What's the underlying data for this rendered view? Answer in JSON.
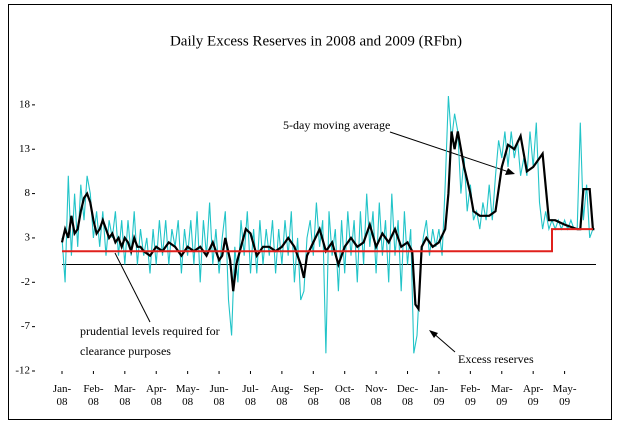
{
  "chart_data": {
    "type": "line",
    "title": "Daily Excess Reserves in 2008 and 2009 (RFbn)",
    "xlim": [
      0,
      17
    ],
    "xticks": [
      {
        "value": 0,
        "label": "Jan-08"
      },
      {
        "value": 1,
        "label": "Feb-08"
      },
      {
        "value": 2,
        "label": "Mar-08"
      },
      {
        "value": 3,
        "label": "Apr-08"
      },
      {
        "value": 4,
        "label": "May-08"
      },
      {
        "value": 5,
        "label": "Jun-08"
      },
      {
        "value": 6,
        "label": "Jul-08"
      },
      {
        "value": 7,
        "label": "Aug-08"
      },
      {
        "value": 8,
        "label": "Sep-08"
      },
      {
        "value": 9,
        "label": "Oct-08"
      },
      {
        "value": 10,
        "label": "Nov-08"
      },
      {
        "value": 11,
        "label": "Dec-08"
      },
      {
        "value": 12,
        "label": "Jan-09"
      },
      {
        "value": 13,
        "label": "Feb-09"
      },
      {
        "value": 14,
        "label": "Mar-09"
      },
      {
        "value": 15,
        "label": "Apr-09"
      },
      {
        "value": 16,
        "label": "May-09"
      }
    ],
    "ylim": [
      -12,
      19
    ],
    "yticks": [
      -12,
      -7,
      -2,
      3,
      8,
      13,
      18
    ],
    "zero_line": true,
    "series": [
      {
        "name": "Excess reserves",
        "color": "#22c4c8",
        "x": [
          0,
          0.1,
          0.2,
          0.3,
          0.4,
          0.5,
          0.6,
          0.7,
          0.8,
          0.9,
          1,
          1.1,
          1.2,
          1.3,
          1.4,
          1.5,
          1.6,
          1.7,
          1.8,
          1.9,
          2,
          2.1,
          2.2,
          2.3,
          2.4,
          2.5,
          2.6,
          2.7,
          2.8,
          2.9,
          3,
          3.1,
          3.2,
          3.3,
          3.4,
          3.5,
          3.6,
          3.7,
          3.8,
          3.9,
          4,
          4.1,
          4.2,
          4.3,
          4.4,
          4.5,
          4.6,
          4.7,
          4.8,
          4.9,
          5,
          5.1,
          5.2,
          5.3,
          5.4,
          5.5,
          5.6,
          5.7,
          5.8,
          5.9,
          6,
          6.1,
          6.2,
          6.3,
          6.4,
          6.5,
          6.6,
          6.7,
          6.8,
          6.9,
          7,
          7.1,
          7.2,
          7.3,
          7.4,
          7.5,
          7.6,
          7.7,
          7.8,
          7.9,
          8,
          8.1,
          8.2,
          8.3,
          8.4,
          8.5,
          8.6,
          8.7,
          8.8,
          8.9,
          9,
          9.1,
          9.2,
          9.3,
          9.4,
          9.5,
          9.6,
          9.7,
          9.8,
          9.9,
          10,
          10.1,
          10.2,
          10.3,
          10.4,
          10.5,
          10.6,
          10.7,
          10.8,
          10.9,
          11,
          11.1,
          11.2,
          11.3,
          11.4,
          11.5,
          11.6,
          11.7,
          11.8,
          11.9,
          12,
          12.1,
          12.2,
          12.3,
          12.4,
          12.5,
          12.6,
          12.7,
          12.8,
          12.9,
          13,
          13.1,
          13.2,
          13.3,
          13.4,
          13.5,
          13.6,
          13.7,
          13.8,
          13.9,
          14,
          14.1,
          14.2,
          14.3,
          14.4,
          14.5,
          14.6,
          14.7,
          14.8,
          14.9,
          15,
          15.1,
          15.2,
          15.3,
          15.4,
          15.5,
          15.6,
          15.7,
          15.8,
          15.9,
          16,
          16.1,
          16.2,
          16.3,
          16.4,
          16.5,
          16.6,
          16.7,
          16.8,
          16.9
        ],
        "values": [
          3,
          -2,
          10,
          1,
          8,
          2,
          9,
          5,
          10,
          8,
          3,
          6,
          2,
          6,
          1,
          5,
          3,
          6,
          1,
          5,
          0,
          5,
          1,
          6,
          0,
          4,
          1,
          3,
          -1,
          4,
          0,
          5,
          1,
          5,
          0,
          4,
          2,
          5,
          -1,
          4,
          1,
          5,
          0,
          6,
          -2,
          5,
          1,
          7,
          0,
          4,
          -1,
          3,
          6,
          -4,
          -8,
          2,
          -2,
          5,
          1,
          6,
          -1,
          4,
          -1,
          5,
          0,
          4,
          1,
          5,
          -1,
          4,
          0,
          5,
          1,
          6,
          -2,
          3,
          -4,
          -3,
          3,
          5,
          1,
          7,
          2,
          5,
          -10,
          6,
          1,
          4,
          -3,
          5,
          -1,
          6,
          1,
          5,
          -2,
          6,
          0,
          8,
          2,
          6,
          -1,
          7,
          1,
          5,
          -2,
          8,
          1,
          5,
          -3,
          6,
          0,
          4,
          -10,
          -8,
          -1,
          3,
          5,
          1,
          4,
          2,
          4,
          1,
          9,
          19,
          14,
          17,
          15,
          8,
          12,
          6,
          9,
          5,
          6,
          4,
          7,
          5,
          9,
          5,
          10,
          14,
          12,
          15,
          11,
          15,
          12,
          14,
          10,
          12,
          10,
          15,
          11,
          16,
          7,
          4,
          6,
          4,
          5,
          4,
          5,
          4,
          5,
          4,
          5,
          4,
          4,
          16,
          5,
          9,
          3,
          4
        ]
      },
      {
        "name": "5-day moving average",
        "color": "#000000",
        "x": [
          0,
          0.1,
          0.2,
          0.3,
          0.4,
          0.5,
          0.6,
          0.7,
          0.8,
          0.9,
          1,
          1.1,
          1.2,
          1.3,
          1.4,
          1.5,
          1.6,
          1.7,
          1.8,
          1.9,
          2,
          2.1,
          2.2,
          2.3,
          2.4,
          2.5,
          2.6,
          2.8,
          3,
          3.2,
          3.4,
          3.6,
          3.8,
          4,
          4.2,
          4.4,
          4.6,
          4.8,
          5,
          5.1,
          5.2,
          5.35,
          5.45,
          5.55,
          5.7,
          5.85,
          6,
          6.2,
          6.4,
          6.6,
          6.8,
          7,
          7.2,
          7.4,
          7.6,
          7.7,
          7.8,
          8,
          8.2,
          8.4,
          8.6,
          8.8,
          9,
          9.2,
          9.4,
          9.6,
          9.8,
          10,
          10.2,
          10.4,
          10.6,
          10.8,
          11,
          11.15,
          11.25,
          11.35,
          11.45,
          11.6,
          11.8,
          12,
          12.2,
          12.3,
          12.4,
          12.5,
          12.6,
          12.8,
          13,
          13.1,
          13.3,
          13.6,
          13.8,
          14,
          14.2,
          14.4,
          14.6,
          14.8,
          15,
          15.2,
          15.3,
          15.5,
          15.7,
          16,
          16.4,
          16.5,
          16.6,
          16.8,
          16.9,
          16.95
        ],
        "values": [
          2.5,
          4,
          3,
          5.5,
          3.5,
          4,
          6,
          7.5,
          8,
          7,
          5,
          3.5,
          4,
          5,
          4,
          3,
          3.5,
          2.5,
          3,
          2,
          3,
          2.5,
          1.5,
          3,
          2,
          2,
          1.5,
          1,
          2,
          1.5,
          2.5,
          2,
          1,
          2,
          1.5,
          2,
          1,
          2.5,
          0.5,
          1,
          3,
          0.5,
          -3,
          0,
          2,
          4,
          3.5,
          1,
          2,
          2,
          1.5,
          2,
          3,
          2,
          0,
          -1.5,
          1,
          2.5,
          4,
          1.5,
          2.5,
          0,
          2,
          3,
          2,
          2.5,
          4.5,
          2,
          3.5,
          2.5,
          4,
          2,
          2.5,
          1.5,
          -4.5,
          -5,
          2,
          3,
          2,
          2.5,
          4,
          8,
          15,
          13,
          15,
          11,
          8,
          6,
          5.5,
          5.5,
          6,
          11,
          13.5,
          13,
          14.5,
          10.5,
          11,
          12,
          12.5,
          5,
          5,
          4.5,
          4,
          4,
          8.5,
          8.5,
          4,
          4
        ]
      },
      {
        "name": "prudential levels required for clearance purposes",
        "color": "#e0201c",
        "x": [
          0,
          15.6,
          15.6,
          16.9
        ],
        "values": [
          1.5,
          1.5,
          4,
          4
        ]
      }
    ],
    "annotations": [
      {
        "text": [
          "5-day moving average"
        ],
        "series": 1
      },
      {
        "text": [
          "prudential levels required for",
          "clearance purposes"
        ],
        "series": 2
      },
      {
        "text": [
          "Excess reserves"
        ],
        "series": 0
      }
    ]
  }
}
